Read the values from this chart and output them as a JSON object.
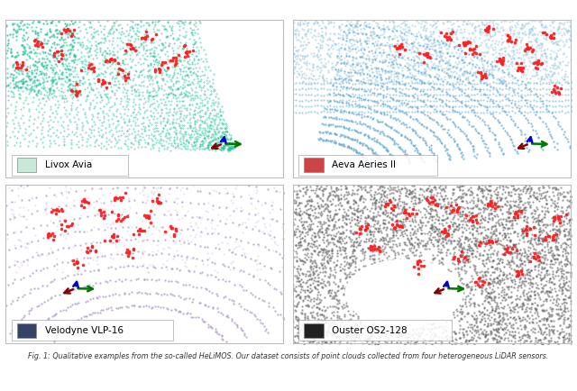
{
  "panels": [
    {
      "label": "Livox Avia",
      "point_color": "#2ec4a0",
      "icon_color": "#c8e8d8"
    },
    {
      "label": "Aeva Aeries II",
      "point_color": "#6baed6",
      "icon_color": "#cc4444"
    },
    {
      "label": "Velodyne VLP-16",
      "point_color": "#b09ac8",
      "icon_color": "#334466"
    },
    {
      "label": "Ouster OS2-128",
      "point_color": "#888888",
      "icon_color": "#222222"
    }
  ],
  "moving_color": "#ff2020",
  "caption": "Fig. 1: Qualitative examples from the so-called HeLiMOS. Our dataset consists of point clouds collected from four heterogeneous LiDAR sensors.",
  "outer_bg": "#ffffff",
  "fig_width": 6.4,
  "fig_height": 4.34
}
